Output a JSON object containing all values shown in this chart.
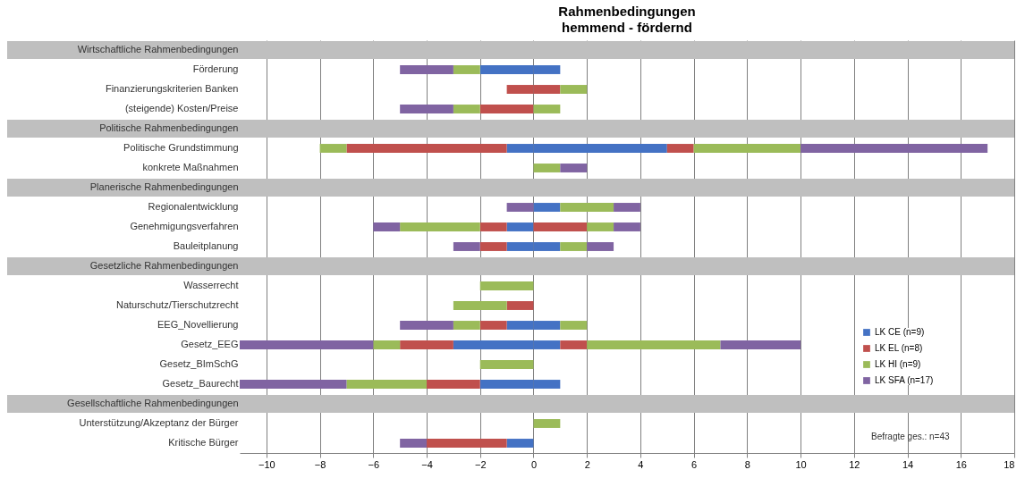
{
  "chart_data": {
    "type": "bar",
    "orientation": "horizontal",
    "stacked": true,
    "title": "Rahmenbedingungen",
    "subtitle": "hemmend - fördernd",
    "categories": [
      "Wirtschaftliche Rahmenbedingungen",
      "Förderung",
      "Finanzierungskriterien Banken",
      "(steigende) Kosten/Preise",
      "Politische Rahmenbedingungen",
      "Politische Grundstimmung",
      "konkrete Maßnahmen",
      "Planerische Rahmenbedingungen",
      "Regionalentwicklung",
      "Genehmigungsverfahren",
      "Bauleitplanung",
      "Gesetzliche Rahmenbedingungen",
      "Wasserrecht",
      "Naturschutz/Tierschutzrecht",
      "EEG_Novellierung",
      "Gesetz_EEG",
      "Gesetz_BImSchG",
      "Gesetz_Baurecht",
      "Gesellschaftliche Rahmenbedingungen",
      "Unterstützung/Akzeptanz der Bürger",
      "Kritische Bürger"
    ],
    "series": [
      {
        "name": "LK CE (n=9)",
        "color": "#4472c4",
        "values": [
          null,
          -2,
          null,
          null,
          null,
          -1,
          null,
          null,
          null,
          -1,
          -1,
          null,
          null,
          null,
          -1,
          -3,
          null,
          -2,
          null,
          null,
          -1
        ]
      },
      {
        "color": "#4472c4",
        "values": [
          null,
          1,
          null,
          null,
          null,
          5,
          null,
          null,
          1,
          null,
          1,
          null,
          null,
          null,
          1,
          1,
          null,
          1,
          null,
          null,
          null
        ]
      },
      {
        "name": "LK EL (n=8)",
        "color": "#c0504d",
        "values": [
          null,
          null,
          -1,
          -2,
          null,
          -6,
          null,
          null,
          null,
          -1,
          -1,
          null,
          null,
          -1,
          -1,
          -2,
          null,
          -2,
          null,
          null,
          -3
        ]
      },
      {
        "color": "#c0504d",
        "values": [
          null,
          null,
          1,
          null,
          null,
          1,
          null,
          null,
          null,
          2,
          null,
          null,
          null,
          null,
          null,
          1,
          null,
          null,
          null,
          null,
          null
        ]
      },
      {
        "name": "LK HI (n=9)",
        "color": "#9bbb59",
        "values": [
          null,
          -1,
          null,
          -1,
          null,
          -1,
          null,
          null,
          null,
          -3,
          null,
          null,
          -2,
          -2,
          -1,
          -1,
          -2,
          -3,
          null,
          null,
          null
        ]
      },
      {
        "color": "#9bbb59",
        "values": [
          null,
          null,
          1,
          1,
          null,
          4,
          1,
          null,
          2,
          1,
          1,
          null,
          null,
          null,
          1,
          5,
          null,
          null,
          null,
          1,
          null
        ]
      },
      {
        "name": "LK SFA (n=17)",
        "color": "#8064a2",
        "values": [
          null,
          -2,
          null,
          -2,
          null,
          null,
          null,
          null,
          -1,
          -1,
          -1,
          null,
          null,
          null,
          -2,
          -5,
          null,
          -4,
          null,
          null,
          -1
        ]
      },
      {
        "color": "#8064a2",
        "values": [
          null,
          null,
          null,
          null,
          null,
          7,
          1,
          null,
          1,
          1,
          1,
          null,
          null,
          null,
          null,
          3,
          null,
          null,
          null,
          null,
          null
        ]
      }
    ],
    "bands": [
      {
        "axis": "y",
        "from": "Wirtschaftliche Rahmenbedingungen",
        "to": "Wirtschaftliche Rahmenbedingungen",
        "color": "#bfbfbf"
      },
      {
        "axis": "y",
        "from": "Politische Rahmenbedingungen",
        "to": "Politische Rahmenbedingungen",
        "color": "#bfbfbf"
      },
      {
        "axis": "y",
        "from": "Planerische Rahmenbedingungen",
        "to": "Planerische Rahmenbedingungen",
        "color": "#bfbfbf"
      },
      {
        "axis": "y",
        "from": "Gesetzliche Rahmenbedingungen",
        "to": "Gesetzliche Rahmenbedingungen",
        "color": "#bfbfbf"
      },
      {
        "axis": "y",
        "from": "Gesellschaftliche Rahmenbedingungen",
        "to": "Gesellschaftliche Rahmenbedingungen",
        "color": "#bfbfbf"
      }
    ],
    "xlim": [
      -11,
      18
    ],
    "xticks": [
      -10,
      -8,
      -6,
      -4,
      -2,
      0,
      2,
      4,
      6,
      8,
      10,
      12,
      14,
      16,
      18
    ],
    "grid": "x",
    "legend": "bottom right",
    "annotations": [
      "Befragte ges.: n=43"
    ]
  }
}
